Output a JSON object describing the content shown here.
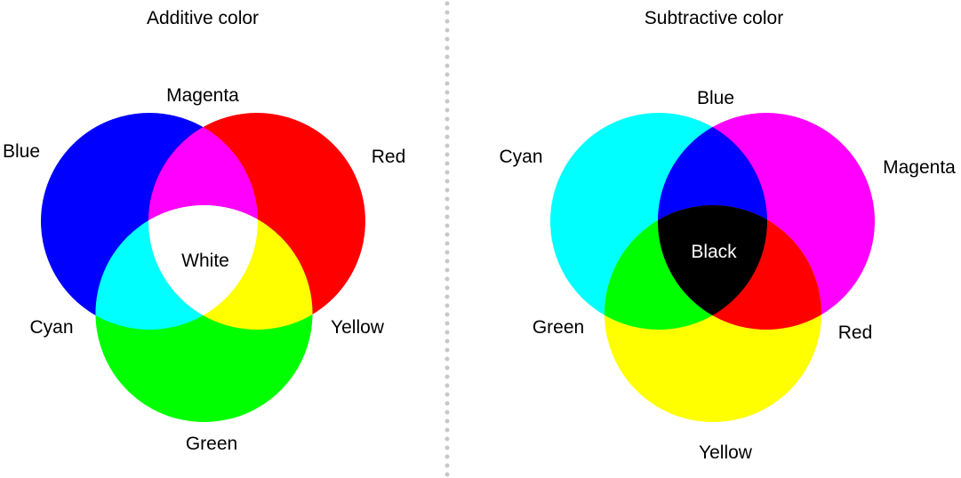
{
  "additive": {
    "title": "Additive color",
    "primaries": [
      {
        "label": "Blue",
        "color": "#0000ff"
      },
      {
        "label": "Red",
        "color": "#ff0000"
      },
      {
        "label": "Green",
        "color": "#00ff00"
      }
    ],
    "mixes": [
      {
        "label": "Magenta",
        "color": "#ff00ff"
      },
      {
        "label": "Cyan",
        "color": "#00ffff"
      },
      {
        "label": "Yellow",
        "color": "#ffff00"
      }
    ],
    "center": {
      "label": "White",
      "color": "#ffffff"
    }
  },
  "subtractive": {
    "title": "Subtractive color",
    "primaries": [
      {
        "label": "Cyan",
        "color": "#00ffff"
      },
      {
        "label": "Magenta",
        "color": "#ff00ff"
      },
      {
        "label": "Yellow",
        "color": "#ffff00"
      }
    ],
    "mixes": [
      {
        "label": "Blue",
        "color": "#0000ff"
      },
      {
        "label": "Green",
        "color": "#00ff00"
      },
      {
        "label": "Red",
        "color": "#ff0000"
      }
    ],
    "center": {
      "label": "Black",
      "color": "#000000"
    }
  },
  "divider_color": "#c8c8c8"
}
